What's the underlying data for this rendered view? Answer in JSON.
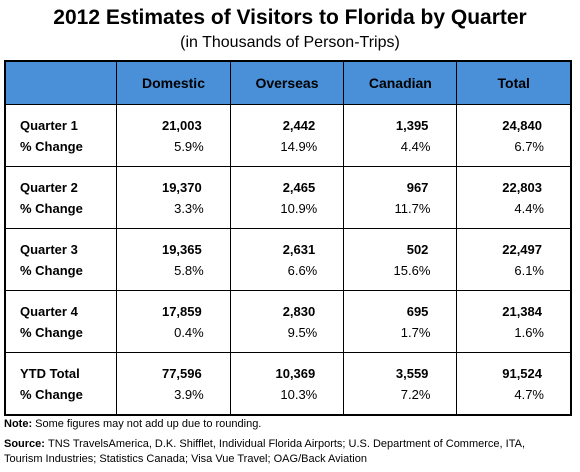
{
  "header": {
    "title": "2012 Estimates of Visitors to Florida by Quarter",
    "subtitle": "(in Thousands of Person-Trips)"
  },
  "table": {
    "columns": [
      "Domestic",
      "Overseas",
      "Canadian",
      "Total"
    ],
    "groups": [
      {
        "label": "Quarter 1",
        "change_label": "% Change",
        "values": [
          "21,003",
          "2,442",
          "1,395",
          "24,840"
        ],
        "changes": [
          "5.9%",
          "14.9%",
          "4.4%",
          "6.7%"
        ]
      },
      {
        "label": "Quarter 2",
        "change_label": "% Change",
        "values": [
          "19,370",
          "2,465",
          "967",
          "22,803"
        ],
        "changes": [
          "3.3%",
          "10.9%",
          "11.7%",
          "4.4%"
        ]
      },
      {
        "label": "Quarter 3",
        "change_label": "% Change",
        "values": [
          "19,365",
          "2,631",
          "502",
          "22,497"
        ],
        "changes": [
          "5.8%",
          "6.6%",
          "15.6%",
          "6.1%"
        ]
      },
      {
        "label": "Quarter 4",
        "change_label": "% Change",
        "values": [
          "17,859",
          "2,830",
          "695",
          "21,384"
        ],
        "changes": [
          "0.4%",
          "9.5%",
          "1.7%",
          "1.6%"
        ]
      },
      {
        "label": "YTD Total",
        "change_label": "% Change",
        "values": [
          "77,596",
          "10,369",
          "3,559",
          "91,524"
        ],
        "changes": [
          "3.9%",
          "10.3%",
          "7.2%",
          "4.7%"
        ]
      }
    ]
  },
  "note": {
    "label": "Note:",
    "text": "Some figures may not add up due to rounding."
  },
  "source": {
    "label": "Source:",
    "text": "TNS TravelsAmerica, D.K. Shifflet, Individual Florida Airports; U.S. Department of Commerce, ITA, Tourism Industries; Statistics Canada; Visa Vue Travel; OAG/Back Aviation"
  }
}
